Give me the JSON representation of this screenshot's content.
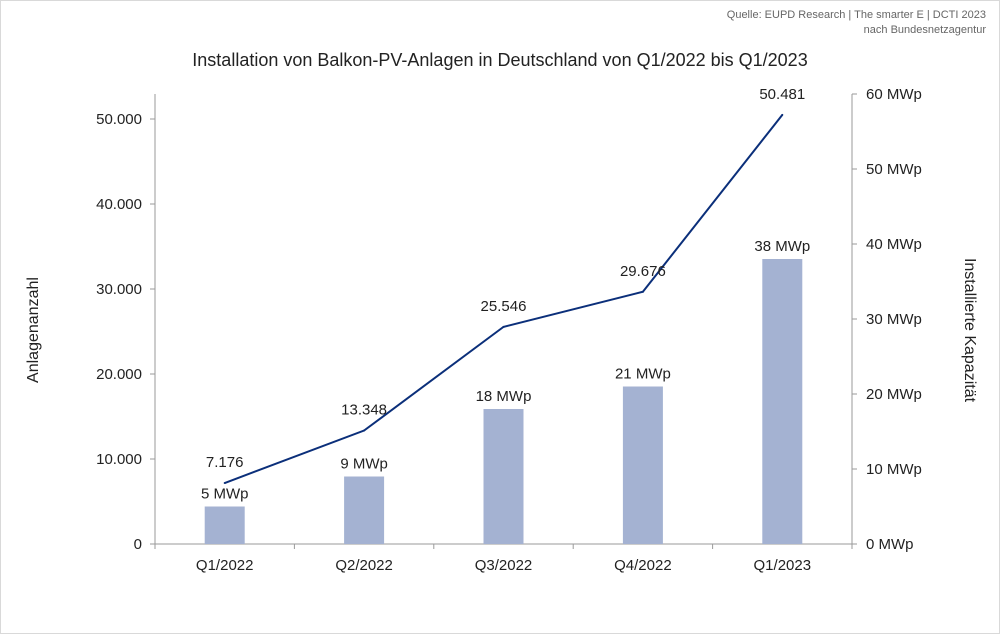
{
  "source": {
    "line1": "Quelle: EUPD Research | The smarter E | DCTI 2023",
    "line2": "nach Bundesnetzagentur"
  },
  "chart_data": {
    "type": "bar",
    "title": "Installation von Balkon-PV-Anlagen in Deutschland von Q1/2022 bis Q1/2023",
    "categories": [
      "Q1/2022",
      "Q2/2022",
      "Q3/2022",
      "Q4/2022",
      "Q1/2023"
    ],
    "ylabel_left": "Anlagenanzahl",
    "ylabel_right": "Installierte Kapazität",
    "ylim_left": [
      0,
      50000
    ],
    "ylim_right": [
      0,
      60
    ],
    "yticks_left": [
      "0",
      "10.000",
      "20.000",
      "30.000",
      "40.000",
      "50.000"
    ],
    "yticks_right": [
      "0 MWp",
      "10 MWp",
      "20 MWp",
      "30 MWp",
      "40 MWp",
      "50 MWp",
      "60 MWp"
    ],
    "grid": false,
    "legend": "none",
    "series": [
      {
        "type": "bar",
        "axis": "right",
        "values": [
          5,
          9,
          18,
          21,
          38
        ],
        "labels": [
          "5 MWp",
          "9 MWp",
          "18 MWp",
          "21 MWp",
          "38 MWp"
        ],
        "color": "#a4b2d2"
      },
      {
        "type": "line",
        "axis": "left",
        "values": [
          7176,
          13348,
          25546,
          29676,
          50481
        ],
        "labels": [
          "7.176",
          "13.348",
          "25.546",
          "29.676",
          "50.481"
        ],
        "color": "#0b2f7a"
      }
    ]
  }
}
